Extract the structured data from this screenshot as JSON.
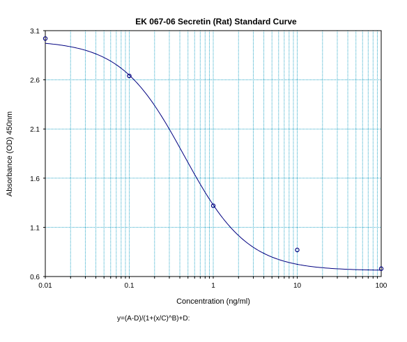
{
  "chart_data": {
    "type": "scatter",
    "title": "EK 067-06 Secretin (Rat) Standard Curve",
    "xlabel": "Concentration (ng/ml)",
    "ylabel": "Absorbance (OD) 450nm",
    "equation": "y=(A-D)/(1+(x/C)^B)+D:",
    "x_scale": "log",
    "xlim": [
      0.01,
      100
    ],
    "ylim": [
      0.6,
      3.1
    ],
    "x_ticks": [
      0.01,
      0.1,
      1,
      10,
      100
    ],
    "x_tick_labels": [
      "0.01",
      "0.1",
      "1",
      "10",
      "100"
    ],
    "y_ticks": [
      0.6,
      1.1,
      1.6,
      2.1,
      2.6,
      3.1
    ],
    "y_tick_labels": [
      "0.6",
      "1.1",
      "1.6",
      "2.1",
      "2.6",
      "3.1"
    ],
    "grid": true,
    "colors": {
      "grid": "#2aa8c8",
      "curve": "#000080",
      "points": "#000080"
    },
    "series": [
      {
        "type": "scatter",
        "x": [
          0.01,
          0.1,
          1,
          10,
          100
        ],
        "y": [
          3.02,
          2.64,
          1.32,
          0.87,
          0.68
        ]
      },
      {
        "type": "fit",
        "model": "4PL",
        "params": {
          "A": 3.0,
          "B": 1.15,
          "C": 0.45,
          "D": 0.66
        }
      }
    ]
  }
}
